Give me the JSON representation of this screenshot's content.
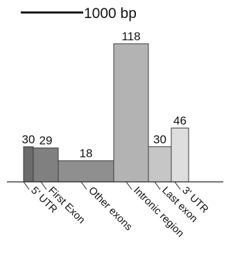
{
  "chart_data": {
    "type": "bar",
    "categories": [
      "5' UTR",
      "First Exon",
      "Other exons",
      "Intronic region",
      "Last exon",
      "3' UTR"
    ],
    "values": [
      30,
      29,
      18,
      118,
      30,
      46
    ],
    "scale_bar_label": "1000 bp",
    "ylim": [
      0,
      118
    ],
    "grid": false,
    "legend": "none",
    "colors": [
      "#6b6b6b",
      "#808080",
      "#8f8f8f",
      "#b3b3b3",
      "#c6c6c6",
      "#dedede"
    ],
    "edge_color": "#3a3a3a"
  }
}
